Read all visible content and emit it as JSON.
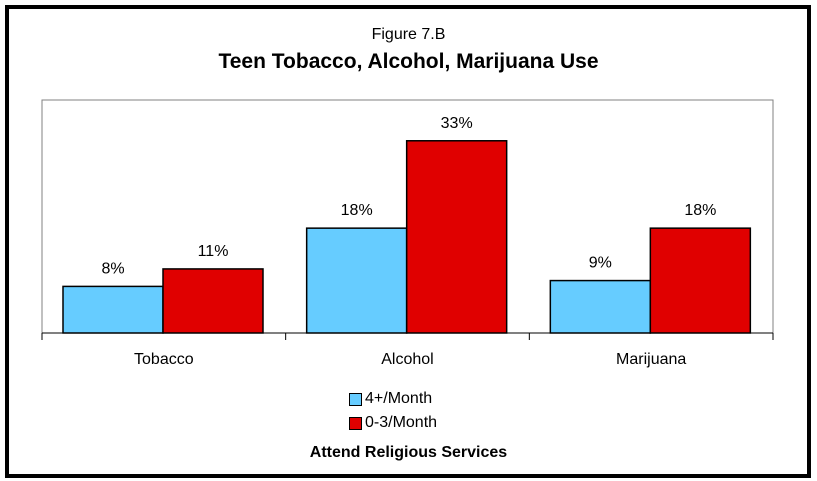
{
  "chart_data": {
    "type": "bar",
    "figure_label": "Figure 7.B",
    "title": "Teen Tobacco, Alcohol, Marijuana Use",
    "categories": [
      "Tobacco",
      "Alcohol",
      "Marijuana"
    ],
    "series": [
      {
        "name": "4+/Month",
        "values": [
          8,
          18,
          9
        ],
        "labels": [
          "8%",
          "18%",
          "9%"
        ],
        "color": "#66CCFF"
      },
      {
        "name": "0-3/Month",
        "values": [
          11,
          33,
          18
        ],
        "labels": [
          "11%",
          "33%",
          "18%"
        ],
        "color": "#E00000"
      }
    ],
    "legend_title": "Attend Religious Services",
    "legend_position": "bottom",
    "ylim": [
      0,
      40
    ],
    "grid": false,
    "xlabel": "",
    "ylabel": ""
  }
}
